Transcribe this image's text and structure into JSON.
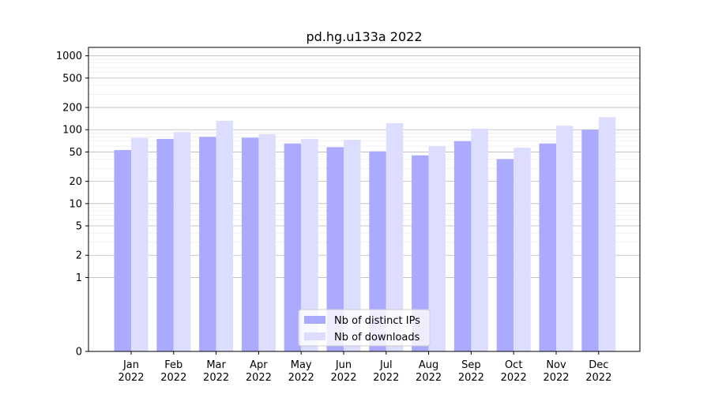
{
  "chart_data": {
    "type": "bar",
    "title": "pd.hg.u133a 2022",
    "xlabel": "",
    "ylabel": "",
    "yscale": "symlog",
    "ylim": [
      0,
      1300
    ],
    "yticks": [
      0,
      1,
      2,
      5,
      10,
      20,
      50,
      100,
      200,
      500,
      1000
    ],
    "ytick_labels": [
      "0",
      "1",
      "2",
      "5",
      "10",
      "20",
      "50",
      "100",
      "200",
      "500",
      "1000"
    ],
    "grid": true,
    "legend_position": "lower-center",
    "categories": [
      {
        "month": "Jan",
        "year": "2022"
      },
      {
        "month": "Feb",
        "year": "2022"
      },
      {
        "month": "Mar",
        "year": "2022"
      },
      {
        "month": "Apr",
        "year": "2022"
      },
      {
        "month": "May",
        "year": "2022"
      },
      {
        "month": "Jun",
        "year": "2022"
      },
      {
        "month": "Jul",
        "year": "2022"
      },
      {
        "month": "Aug",
        "year": "2022"
      },
      {
        "month": "Sep",
        "year": "2022"
      },
      {
        "month": "Oct",
        "year": "2022"
      },
      {
        "month": "Nov",
        "year": "2022"
      },
      {
        "month": "Dec",
        "year": "2022"
      }
    ],
    "series": [
      {
        "name": "Nb of distinct IPs",
        "color": "#aaaaff",
        "values": [
          53,
          75,
          80,
          78,
          65,
          58,
          51,
          45,
          70,
          40,
          65,
          100
        ]
      },
      {
        "name": "Nb of downloads",
        "color": "#ddddff",
        "values": [
          78,
          93,
          132,
          87,
          75,
          73,
          123,
          60,
          103,
          57,
          113,
          148
        ]
      }
    ]
  }
}
